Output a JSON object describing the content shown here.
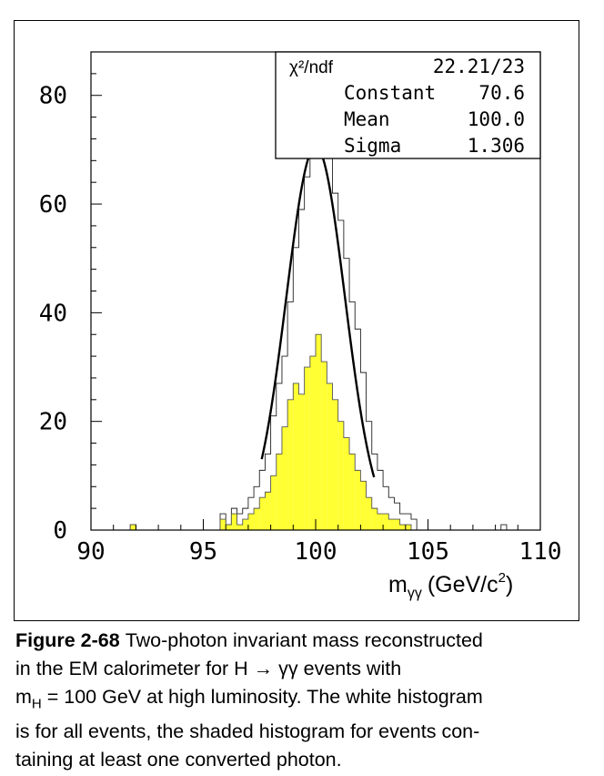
{
  "chart_data": {
    "type": "bar",
    "xlabel_main": "m",
    "xlabel_sub": "γγ",
    "xlabel_units": "(GeV/c",
    "xlabel_sup": "2",
    "xlabel_close": ")",
    "xlim": [
      90,
      110
    ],
    "ylim": [
      0,
      88
    ],
    "x_ticks": [
      90,
      95,
      100,
      105,
      110
    ],
    "y_ticks": [
      0,
      20,
      40,
      60,
      80
    ],
    "bin_width": 0.25,
    "series": [
      {
        "name": "all events",
        "fill": "#ffffff",
        "bins": [
          [
            91.75,
            1
          ],
          [
            95.75,
            3
          ],
          [
            96.0,
            1
          ],
          [
            96.25,
            4
          ],
          [
            96.5,
            3
          ],
          [
            96.75,
            4
          ],
          [
            97.0,
            6
          ],
          [
            97.25,
            8
          ],
          [
            97.5,
            11
          ],
          [
            97.75,
            14
          ],
          [
            98.0,
            21
          ],
          [
            98.25,
            27
          ],
          [
            98.5,
            32
          ],
          [
            98.75,
            42
          ],
          [
            99.0,
            52
          ],
          [
            99.25,
            59
          ],
          [
            99.5,
            65
          ],
          [
            99.75,
            69
          ],
          [
            100.0,
            79
          ],
          [
            100.25,
            77
          ],
          [
            100.5,
            71
          ],
          [
            100.75,
            62
          ],
          [
            101.0,
            57
          ],
          [
            101.25,
            50
          ],
          [
            101.5,
            42
          ],
          [
            101.75,
            37
          ],
          [
            102.0,
            29
          ],
          [
            102.25,
            20
          ],
          [
            102.5,
            14
          ],
          [
            102.75,
            11
          ],
          [
            103.0,
            8
          ],
          [
            103.25,
            6
          ],
          [
            103.5,
            5
          ],
          [
            103.75,
            3
          ],
          [
            104.0,
            3
          ],
          [
            104.25,
            2
          ],
          [
            108.25,
            1
          ]
        ]
      },
      {
        "name": "at least one converted photon",
        "fill": "#ffff33",
        "bins": [
          [
            91.75,
            1
          ],
          [
            95.75,
            2
          ],
          [
            96.0,
            1
          ],
          [
            96.25,
            3
          ],
          [
            96.5,
            1
          ],
          [
            96.75,
            2
          ],
          [
            97.0,
            3
          ],
          [
            97.25,
            4
          ],
          [
            97.5,
            6
          ],
          [
            97.75,
            7
          ],
          [
            98.0,
            10
          ],
          [
            98.25,
            14
          ],
          [
            98.5,
            19
          ],
          [
            98.75,
            24
          ],
          [
            99.0,
            27
          ],
          [
            99.25,
            25
          ],
          [
            99.5,
            30
          ],
          [
            99.75,
            32
          ],
          [
            100.0,
            36
          ],
          [
            100.25,
            31
          ],
          [
            100.5,
            27
          ],
          [
            100.75,
            24
          ],
          [
            101.0,
            20
          ],
          [
            101.25,
            17
          ],
          [
            101.5,
            14
          ],
          [
            101.75,
            11
          ],
          [
            102.0,
            9
          ],
          [
            102.25,
            6
          ],
          [
            102.5,
            4
          ],
          [
            102.75,
            3
          ],
          [
            103.0,
            3
          ],
          [
            103.25,
            2
          ],
          [
            103.5,
            2
          ],
          [
            103.75,
            1
          ],
          [
            104.0,
            1
          ]
        ]
      }
    ],
    "fit": {
      "type": "gaussian",
      "range": [
        97.6,
        102.6
      ],
      "constant": 70.6,
      "mean": 100.0,
      "sigma": 1.306
    },
    "stats": {
      "chi2_label": "χ²/ndf",
      "chi2_value": "22.21/23",
      "rows": [
        {
          "label": "Constant",
          "value": "70.6"
        },
        {
          "label": "Mean",
          "value": "100.0"
        },
        {
          "label": "Sigma",
          "value": "1.306"
        }
      ]
    }
  },
  "caption": {
    "figure_label": "Figure 2-68",
    "line1": "Two-photon invariant mass reconstructed",
    "line2": "in the EM calorimeter for H → γγ events with",
    "line3_pre": "m",
    "line3_sub": "H",
    "line3_post": " = 100 GeV at high luminosity. The white histogram",
    "line4": "is for all events, the shaded histogram for events con-",
    "line5": "taining at least one converted photon."
  }
}
